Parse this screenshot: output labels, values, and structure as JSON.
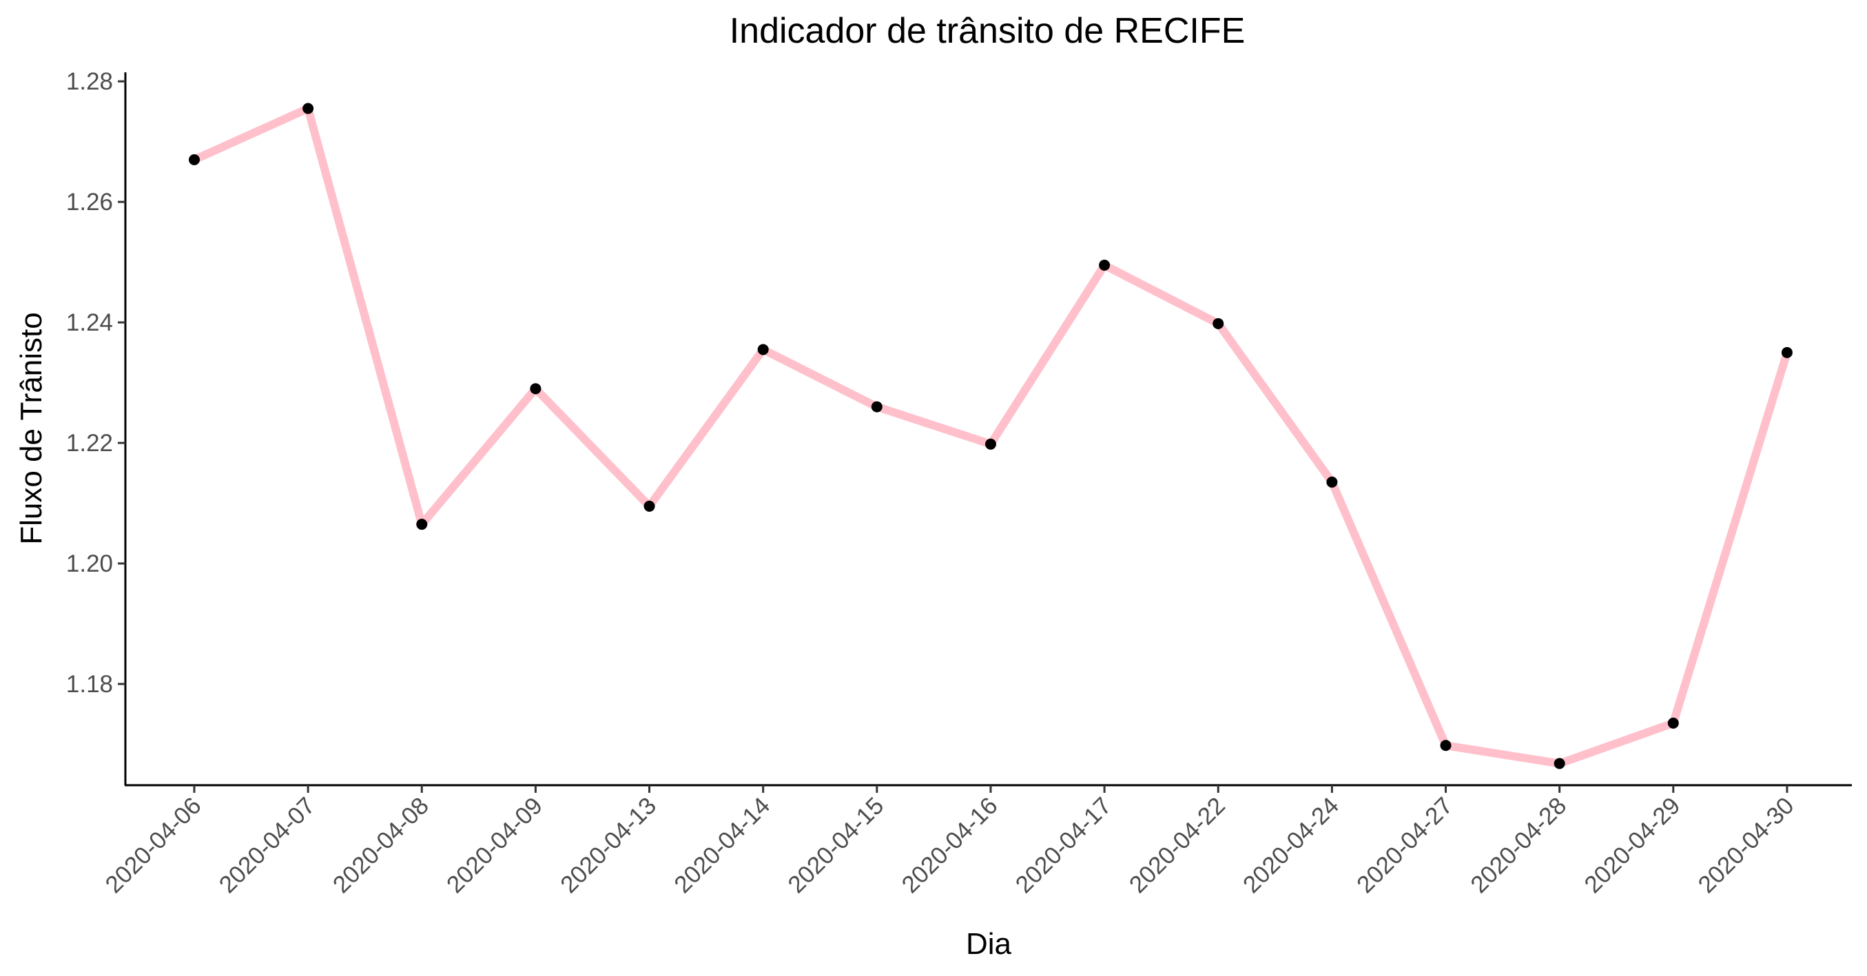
{
  "chart_data": {
    "type": "line",
    "title": "Indicador de trânsito de RECIFE",
    "xlabel": "Dia",
    "ylabel": "Fluxo de Trânisto",
    "categories": [
      "2020-04-06",
      "2020-04-07",
      "2020-04-08",
      "2020-04-09",
      "2020-04-13",
      "2020-04-14",
      "2020-04-15",
      "2020-04-16",
      "2020-04-17",
      "2020-04-22",
      "2020-04-24",
      "2020-04-27",
      "2020-04-28",
      "2020-04-29",
      "2020-04-30"
    ],
    "series": [
      {
        "values": [
          1.267,
          1.2755,
          1.2065,
          1.229,
          1.2095,
          1.2355,
          1.226,
          1.2198,
          1.2495,
          1.2398,
          1.2135,
          1.1698,
          1.1668,
          1.1735,
          1.235
        ],
        "line_color": "#ffc0cb",
        "point_color": "#000000"
      }
    ],
    "y_ticks": [
      1.18,
      1.2,
      1.22,
      1.24,
      1.26,
      1.28
    ],
    "y_tick_labels": [
      "1.18",
      "1.20",
      "1.22",
      "1.24",
      "1.26",
      "1.28"
    ],
    "ylim": [
      1.1632,
      1.2815
    ],
    "grid": false,
    "legend": "none"
  }
}
